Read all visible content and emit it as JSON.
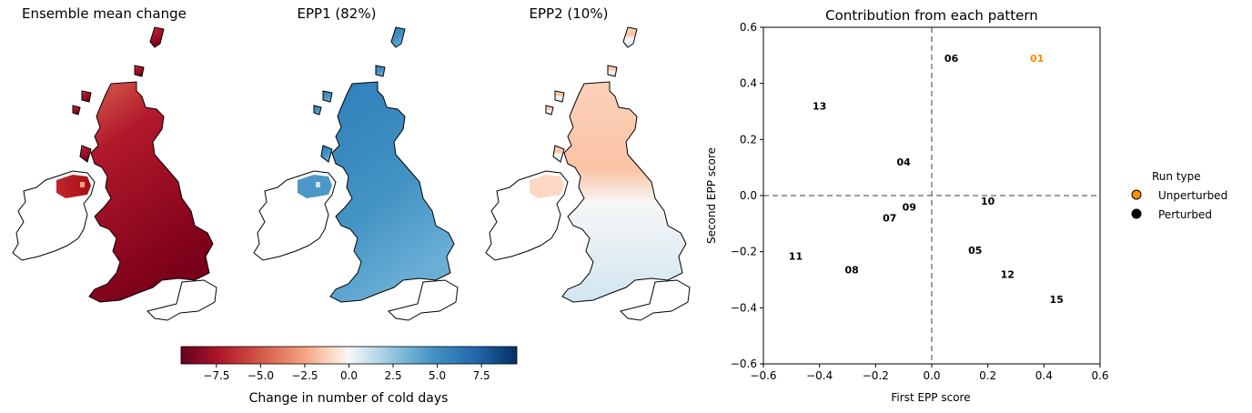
{
  "maps": {
    "titles": [
      "Ensemble mean change",
      "EPP1 (82%)",
      "EPP2 (10%)"
    ],
    "colorbar": {
      "label": "Change in number of cold days",
      "range": [
        -9.5,
        9.5
      ],
      "ticks": [
        "−7.5",
        "−5.0",
        "−2.5",
        "0.0",
        "2.5",
        "5.0",
        "7.5"
      ],
      "tick_values": [
        -7.5,
        -5.0,
        -2.5,
        0.0,
        2.5,
        5.0,
        7.5
      ]
    },
    "colors": {
      "dark_red": "#8b0a1a",
      "red": "#b2182b",
      "light_red": "#f4a582",
      "white": "#f7f7f7",
      "light_blue": "#92c5de",
      "blue": "#4393c3",
      "dark_blue": "#053061"
    }
  },
  "chart_data": {
    "type": "scatter",
    "title": "Contribution from each pattern",
    "xlabel": "First EPP score",
    "ylabel": "Second EPP score",
    "xlim": [
      -0.6,
      0.6
    ],
    "ylim": [
      -0.6,
      0.6
    ],
    "xticks": [
      -0.6,
      -0.4,
      -0.2,
      0.0,
      0.2,
      0.4,
      0.6
    ],
    "yticks": [
      -0.6,
      -0.4,
      -0.2,
      0.0,
      0.2,
      0.4,
      0.6
    ],
    "xtick_labels": [
      "−0.6",
      "−0.4",
      "−0.2",
      "0.0",
      "0.2",
      "0.4",
      "0.6"
    ],
    "ytick_labels": [
      "−0.6",
      "−0.4",
      "−0.2",
      "0.0",
      "0.2",
      "0.4",
      "0.6"
    ],
    "grid": false,
    "reference_lines": {
      "x": 0.0,
      "y": 0.0,
      "style": "dashed"
    },
    "points": [
      {
        "label": "01",
        "x": 0.375,
        "y": 0.49,
        "run_type": "Unperturbed"
      },
      {
        "label": "06",
        "x": 0.07,
        "y": 0.49,
        "run_type": "Perturbed"
      },
      {
        "label": "13",
        "x": -0.4,
        "y": 0.32,
        "run_type": "Perturbed"
      },
      {
        "label": "04",
        "x": -0.1,
        "y": 0.12,
        "run_type": "Perturbed"
      },
      {
        "label": "10",
        "x": 0.2,
        "y": -0.02,
        "run_type": "Perturbed"
      },
      {
        "label": "09",
        "x": -0.08,
        "y": -0.04,
        "run_type": "Perturbed"
      },
      {
        "label": "07",
        "x": -0.15,
        "y": -0.08,
        "run_type": "Perturbed"
      },
      {
        "label": "05",
        "x": 0.155,
        "y": -0.195,
        "run_type": "Perturbed"
      },
      {
        "label": "11",
        "x": -0.485,
        "y": -0.215,
        "run_type": "Perturbed"
      },
      {
        "label": "08",
        "x": -0.285,
        "y": -0.265,
        "run_type": "Perturbed"
      },
      {
        "label": "12",
        "x": 0.27,
        "y": -0.28,
        "run_type": "Perturbed"
      },
      {
        "label": "15",
        "x": 0.445,
        "y": -0.37,
        "run_type": "Perturbed"
      }
    ],
    "legend": {
      "title": "Run type",
      "placement": "outside-right",
      "entries": [
        {
          "name": "Unperturbed",
          "color": "#ff8c00"
        },
        {
          "name": "Perturbed",
          "color": "#000000"
        }
      ]
    }
  }
}
